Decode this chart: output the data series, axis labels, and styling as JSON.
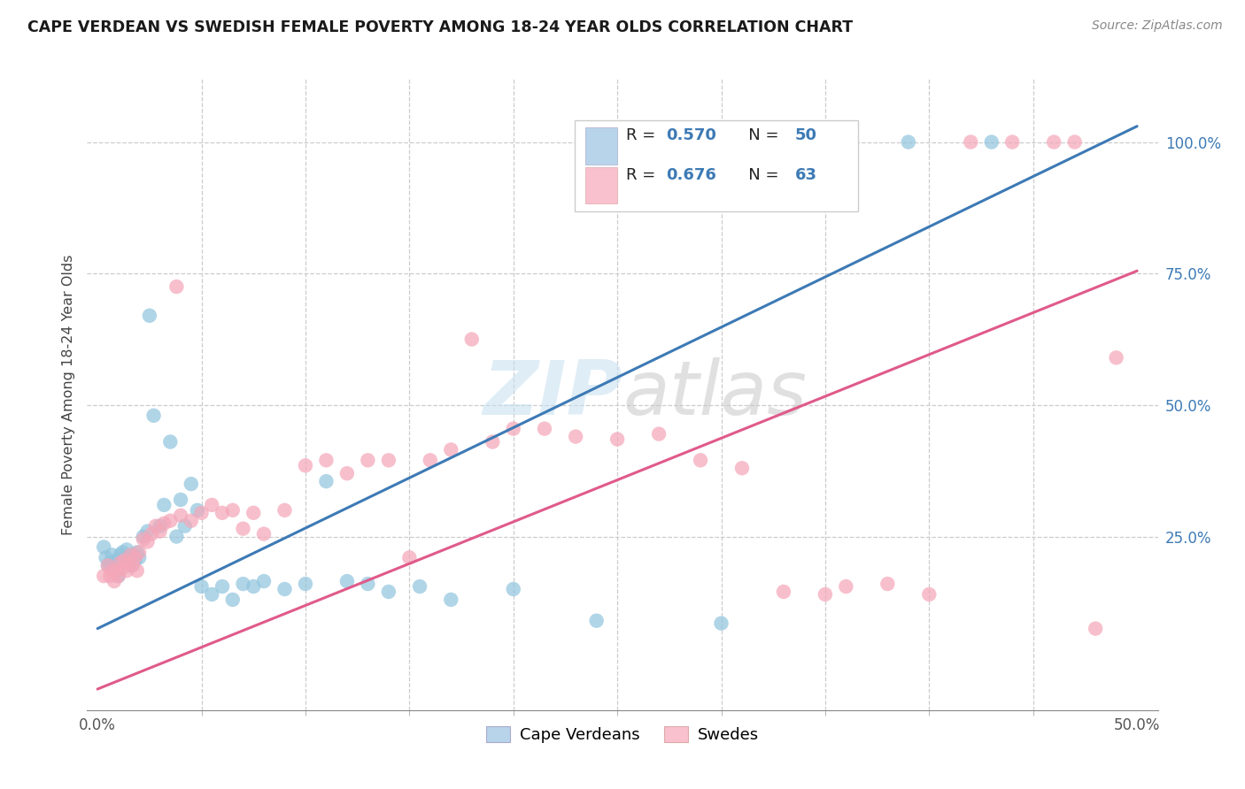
{
  "title": "CAPE VERDEAN VS SWEDISH FEMALE POVERTY AMONG 18-24 YEAR OLDS CORRELATION CHART",
  "source": "Source: ZipAtlas.com",
  "ylabel": "Female Poverty Among 18-24 Year Olds",
  "blue_R": "0.570",
  "blue_N": "50",
  "pink_R": "0.676",
  "pink_N": "63",
  "blue_color": "#92c5de",
  "pink_color": "#f4a7b9",
  "blue_line_color": "#3d7ab5",
  "pink_line_color": "#e05a8a",
  "blue_legend_fill": "#b8d4ea",
  "pink_legend_fill": "#f9c0ce",
  "legend_label_blue": "Cape Verdeans",
  "legend_label_pink": "Swedes",
  "watermark_color": "#c5dff0",
  "blue_scatter_x": [
    0.003,
    0.004,
    0.005,
    0.006,
    0.007,
    0.008,
    0.009,
    0.01,
    0.011,
    0.012,
    0.013,
    0.014,
    0.015,
    0.016,
    0.017,
    0.018,
    0.019,
    0.02,
    0.022,
    0.024,
    0.025,
    0.027,
    0.03,
    0.032,
    0.035,
    0.038,
    0.04,
    0.042,
    0.045,
    0.048,
    0.05,
    0.055,
    0.06,
    0.065,
    0.07,
    0.075,
    0.08,
    0.09,
    0.1,
    0.11,
    0.12,
    0.13,
    0.14,
    0.155,
    0.17,
    0.2,
    0.24,
    0.3,
    0.39,
    0.43
  ],
  "blue_scatter_y": [
    0.23,
    0.21,
    0.195,
    0.2,
    0.215,
    0.19,
    0.205,
    0.175,
    0.215,
    0.22,
    0.2,
    0.225,
    0.21,
    0.195,
    0.215,
    0.205,
    0.22,
    0.21,
    0.25,
    0.26,
    0.67,
    0.48,
    0.27,
    0.31,
    0.43,
    0.25,
    0.32,
    0.27,
    0.35,
    0.3,
    0.155,
    0.14,
    0.155,
    0.13,
    0.16,
    0.155,
    0.165,
    0.15,
    0.16,
    0.355,
    0.165,
    0.16,
    0.145,
    0.155,
    0.13,
    0.15,
    0.09,
    0.085,
    1.0,
    1.0
  ],
  "pink_scatter_x": [
    0.003,
    0.005,
    0.006,
    0.007,
    0.008,
    0.009,
    0.01,
    0.011,
    0.012,
    0.013,
    0.014,
    0.015,
    0.016,
    0.017,
    0.018,
    0.019,
    0.02,
    0.022,
    0.024,
    0.026,
    0.028,
    0.03,
    0.032,
    0.035,
    0.038,
    0.04,
    0.045,
    0.05,
    0.055,
    0.06,
    0.065,
    0.07,
    0.075,
    0.08,
    0.09,
    0.1,
    0.11,
    0.12,
    0.13,
    0.14,
    0.15,
    0.16,
    0.17,
    0.18,
    0.19,
    0.2,
    0.215,
    0.23,
    0.25,
    0.27,
    0.29,
    0.31,
    0.33,
    0.35,
    0.36,
    0.38,
    0.4,
    0.42,
    0.44,
    0.46,
    0.47,
    0.48,
    0.49
  ],
  "pink_scatter_y": [
    0.175,
    0.195,
    0.175,
    0.185,
    0.165,
    0.185,
    0.175,
    0.2,
    0.19,
    0.205,
    0.185,
    0.2,
    0.215,
    0.195,
    0.21,
    0.185,
    0.22,
    0.245,
    0.24,
    0.255,
    0.27,
    0.26,
    0.275,
    0.28,
    0.725,
    0.29,
    0.28,
    0.295,
    0.31,
    0.295,
    0.3,
    0.265,
    0.295,
    0.255,
    0.3,
    0.385,
    0.395,
    0.37,
    0.395,
    0.395,
    0.21,
    0.395,
    0.415,
    0.625,
    0.43,
    0.455,
    0.455,
    0.44,
    0.435,
    0.445,
    0.395,
    0.38,
    0.145,
    0.14,
    0.155,
    0.16,
    0.14,
    1.0,
    1.0,
    1.0,
    1.0,
    0.075,
    0.59
  ],
  "blue_line_x": [
    0.0,
    0.5
  ],
  "blue_line_y": [
    0.075,
    1.03
  ],
  "pink_line_x": [
    0.0,
    0.5
  ],
  "pink_line_y": [
    -0.04,
    0.755
  ],
  "xlim": [
    -0.005,
    0.51
  ],
  "ylim": [
    -0.08,
    1.12
  ],
  "ytick_vals": [
    0.25,
    0.5,
    0.75,
    1.0
  ],
  "ytick_labels": [
    "25.0%",
    "50.0%",
    "75.0%",
    "100.0%"
  ],
  "xtick_end_labels": [
    "0.0%",
    "50.0%"
  ],
  "xtick_minor_vals": [
    0.05,
    0.1,
    0.15,
    0.2,
    0.25,
    0.3,
    0.35,
    0.4,
    0.45
  ]
}
